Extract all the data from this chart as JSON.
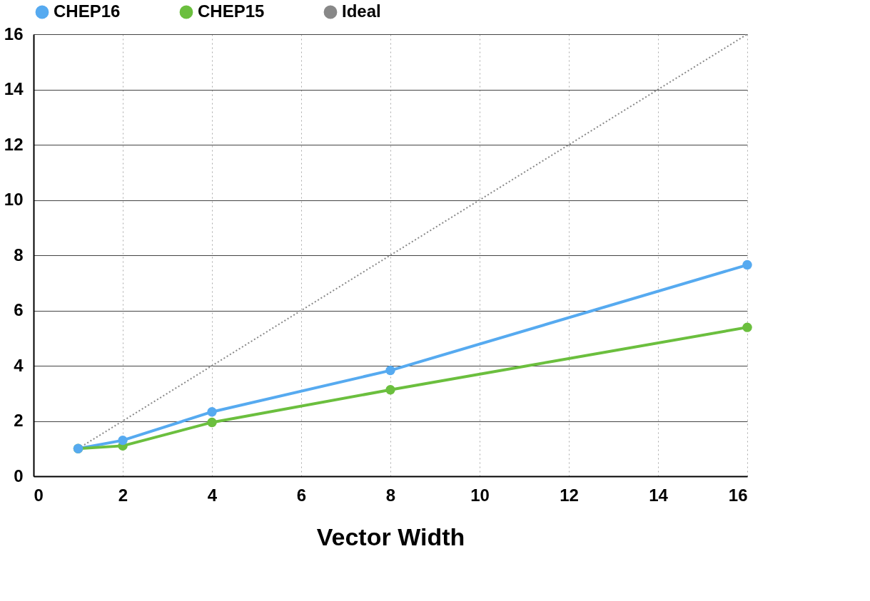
{
  "chart_data": {
    "type": "line",
    "xlabel": "Vector Width",
    "x": [
      1,
      2,
      4,
      8,
      16
    ],
    "series": [
      {
        "name": "CHEP16",
        "color": "#56aaf0",
        "values": [
          1.0,
          1.3,
          2.33,
          3.83,
          7.65
        ],
        "marker": "circle",
        "line_style": "solid"
      },
      {
        "name": "CHEP15",
        "color": "#6bbf3e",
        "values": [
          1.0,
          1.1,
          1.95,
          3.13,
          5.39
        ],
        "marker": "circle",
        "line_style": "solid"
      },
      {
        "name": "Ideal",
        "color": "#888888",
        "x": [
          1,
          16
        ],
        "values": [
          1,
          16
        ],
        "marker": "none",
        "line_style": "dotted"
      }
    ],
    "xlim": [
      0,
      16
    ],
    "ylim": [
      0,
      16
    ],
    "xticks": [
      0,
      2,
      4,
      6,
      8,
      10,
      12,
      14,
      16
    ],
    "yticks": [
      0,
      2,
      4,
      6,
      8,
      10,
      12,
      14,
      16
    ],
    "grid": true,
    "legend": "top"
  }
}
